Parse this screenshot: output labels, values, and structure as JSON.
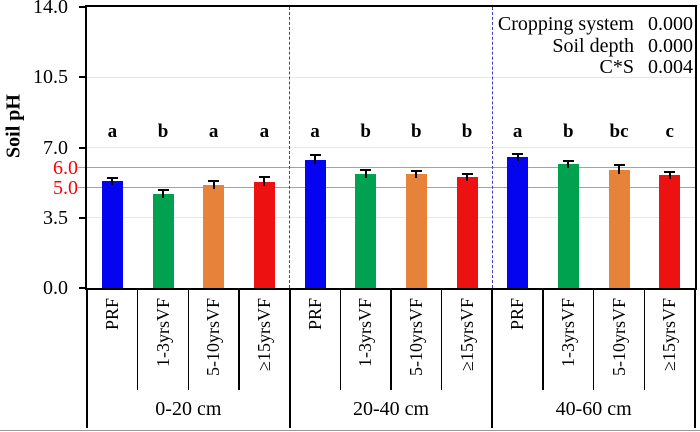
{
  "chart_data": {
    "type": "bar",
    "title": "",
    "xlabel": "",
    "ylabel": "Soil pH",
    "ylim": [
      0,
      14
    ],
    "grid": "horizontal-light",
    "legend": "none",
    "y_ticks": [
      {
        "label": "14.0",
        "value": 14
      },
      {
        "label": "10.5",
        "value": 10.5
      },
      {
        "label": "7.0",
        "value": 7
      },
      {
        "label": "3.5",
        "value": 3.5
      },
      {
        "label": "0.0",
        "value": 0
      }
    ],
    "ref_lines": [
      {
        "label": "6.0",
        "value": 6.0
      },
      {
        "label": "5.0",
        "value": 5.0
      }
    ],
    "categories": [
      "PRF",
      "1-3yrsVF",
      "5-10yrsVF",
      "≥15yrsVF"
    ],
    "category_colors": [
      "#0404f0",
      "#00a24f",
      "#e7823b",
      "#ee1111"
    ],
    "groups": [
      {
        "label": "0-20 cm",
        "values": [
          5.35,
          4.7,
          5.15,
          5.3
        ],
        "errors": [
          0.15,
          0.2,
          0.2,
          0.22
        ],
        "letters": [
          "a",
          "b",
          "a",
          "a"
        ]
      },
      {
        "label": "20-40 cm",
        "values": [
          6.4,
          5.7,
          5.7,
          5.55
        ],
        "errors": [
          0.22,
          0.18,
          0.15,
          0.15
        ],
        "letters": [
          "a",
          "b",
          "b",
          "b"
        ]
      },
      {
        "label": "40-60 cm",
        "values": [
          6.55,
          6.2,
          5.9,
          5.65
        ],
        "errors": [
          0.15,
          0.15,
          0.25,
          0.15
        ],
        "letters": [
          "a",
          "b",
          "bc",
          "c"
        ]
      }
    ],
    "stats_annotations": [
      {
        "label": "Cropping system",
        "value": "0.000"
      },
      {
        "label": "Soil depth",
        "value": "0.000"
      },
      {
        "label": "C*S",
        "value": "0.004"
      }
    ],
    "colors": {
      "reference_line": "#f28181",
      "reference_label": "#fe0000",
      "group_separator": "#3b3bc8",
      "gridline": "#e7e7e7",
      "error_bar": "#000000",
      "axis": "#000000"
    }
  }
}
